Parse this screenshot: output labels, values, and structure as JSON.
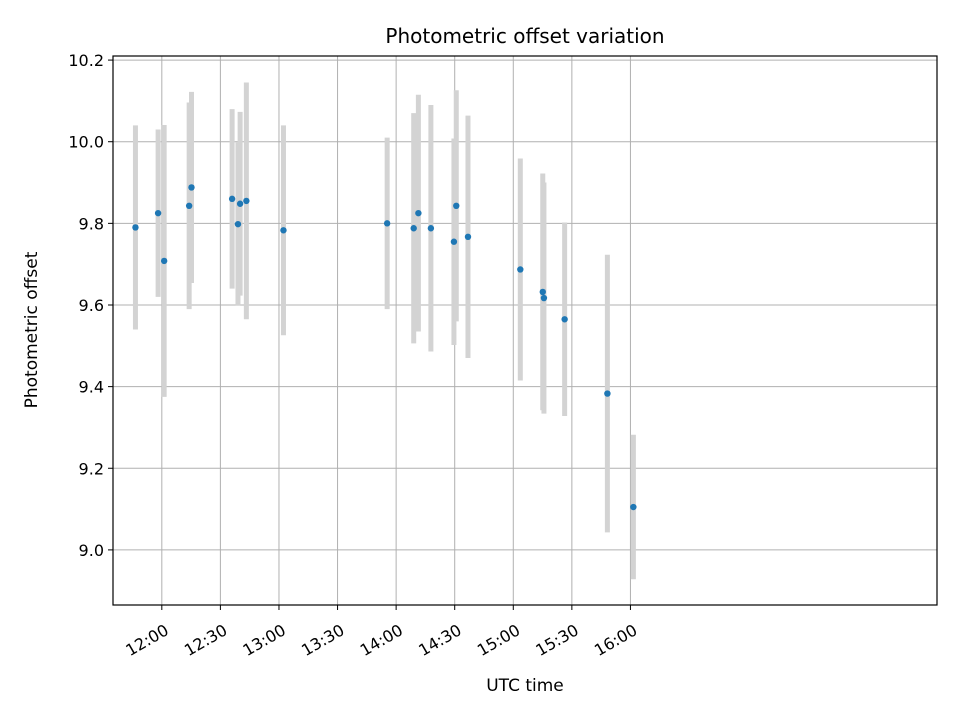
{
  "chart_data": {
    "type": "scatter",
    "title": "Photometric offset variation",
    "xlabel": "UTC time",
    "ylabel": "Photometric offset",
    "xlim": [
      695,
      1117
    ],
    "ylim": [
      8.865,
      10.21
    ],
    "grid": true,
    "x_unit": "minutes since 00:00 UTC",
    "x_ticks": [
      {
        "value": 720,
        "label": "12:00"
      },
      {
        "value": 750,
        "label": "12:30"
      },
      {
        "value": 780,
        "label": "13:00"
      },
      {
        "value": 810,
        "label": "13:30"
      },
      {
        "value": 840,
        "label": "14:00"
      },
      {
        "value": 870,
        "label": "14:30"
      },
      {
        "value": 900,
        "label": "15:00"
      },
      {
        "value": 930,
        "label": "15:30"
      },
      {
        "value": 960,
        "label": "16:00"
      }
    ],
    "y_ticks": [
      {
        "value": 9.0,
        "label": "9.0"
      },
      {
        "value": 9.2,
        "label": "9.2"
      },
      {
        "value": 9.4,
        "label": "9.4"
      },
      {
        "value": 9.6,
        "label": "9.6"
      },
      {
        "value": 9.8,
        "label": "9.8"
      },
      {
        "value": 10.0,
        "label": "10.0"
      },
      {
        "value": 10.2,
        "label": "10.2"
      }
    ],
    "series": [
      {
        "name": "Photometric offset",
        "color": "#1f77b4",
        "errorbar_color": "#d3d3d3",
        "points": [
          {
            "x": 706.5,
            "y": 9.79,
            "err": 0.25
          },
          {
            "x": 718.1,
            "y": 9.825,
            "err": 0.205
          },
          {
            "x": 721.2,
            "y": 9.708,
            "err": 0.333
          },
          {
            "x": 734.0,
            "y": 9.843,
            "err": 0.253
          },
          {
            "x": 735.2,
            "y": 9.888,
            "err": 0.234
          },
          {
            "x": 756.0,
            "y": 9.86,
            "err": 0.22
          },
          {
            "x": 759.0,
            "y": 9.798,
            "err": 0.2
          },
          {
            "x": 760.1,
            "y": 9.848,
            "err": 0.225
          },
          {
            "x": 763.3,
            "y": 9.855,
            "err": 0.29
          },
          {
            "x": 782.3,
            "y": 9.783,
            "err": 0.257
          },
          {
            "x": 835.4,
            "y": 9.8,
            "err": 0.21
          },
          {
            "x": 849.0,
            "y": 9.788,
            "err": 0.282
          },
          {
            "x": 851.4,
            "y": 9.825,
            "err": 0.29
          },
          {
            "x": 857.8,
            "y": 9.788,
            "err": 0.302
          },
          {
            "x": 869.6,
            "y": 9.755,
            "err": 0.253
          },
          {
            "x": 870.8,
            "y": 9.843,
            "err": 0.283
          },
          {
            "x": 876.8,
            "y": 9.767,
            "err": 0.297
          },
          {
            "x": 903.6,
            "y": 9.687,
            "err": 0.272
          },
          {
            "x": 915.1,
            "y": 9.632,
            "err": 0.29
          },
          {
            "x": 915.7,
            "y": 9.617,
            "err": 0.283
          },
          {
            "x": 926.3,
            "y": 9.565,
            "err": 0.237
          },
          {
            "x": 948.2,
            "y": 9.383,
            "err": 0.34
          },
          {
            "x": 961.5,
            "y": 9.105,
            "err": 0.177
          }
        ]
      }
    ]
  }
}
